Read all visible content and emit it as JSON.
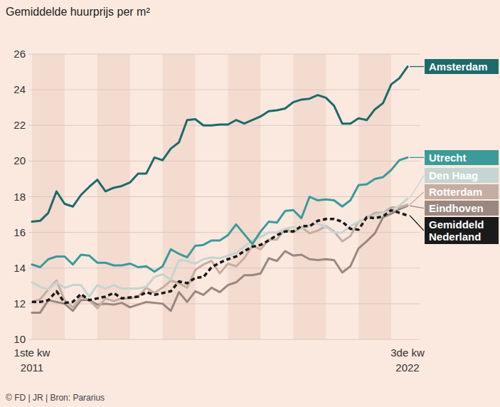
{
  "chart_data": {
    "type": "line",
    "title": "Gemiddelde huurprijs per m²",
    "source": "© FD | JR | Bron: Pararius",
    "categories": [
      "1ste kw 2011",
      null,
      null,
      null,
      null,
      null,
      null,
      null,
      null,
      null,
      null,
      null,
      null,
      null,
      null,
      null,
      null,
      null,
      null,
      null,
      null,
      null,
      null,
      null,
      null,
      null,
      null,
      null,
      null,
      null,
      null,
      null,
      null,
      null,
      null,
      null,
      null,
      null,
      null,
      null,
      null,
      null,
      null,
      null,
      null,
      null,
      "3de kw 2022"
    ],
    "ylim": [
      10,
      26
    ],
    "yticks": [
      10,
      12,
      14,
      16,
      18,
      20,
      22,
      24,
      26
    ],
    "grid": true,
    "legend": "right",
    "series": [
      {
        "name": "Amsterdam",
        "color": "#1c6a6b",
        "line_style": "solid",
        "values": [
          16.6,
          16.65,
          17.1,
          18.3,
          17.6,
          17.45,
          18.1,
          18.55,
          18.95,
          18.3,
          18.5,
          18.6,
          18.8,
          19.3,
          19.3,
          20.2,
          20.05,
          20.7,
          21.05,
          22.3,
          22.35,
          22.0,
          22.0,
          22.05,
          22.05,
          22.3,
          22.1,
          22.3,
          22.5,
          22.8,
          22.85,
          22.95,
          23.3,
          23.45,
          23.5,
          23.7,
          23.55,
          23.1,
          22.1,
          22.1,
          22.4,
          22.3,
          22.9,
          23.25,
          24.3,
          24.65,
          25.3
        ]
      },
      {
        "name": "Utrecht",
        "color": "#3a9b9a",
        "line_style": "solid",
        "values": [
          14.2,
          14.05,
          14.5,
          14.65,
          14.65,
          14.2,
          14.75,
          14.7,
          14.3,
          14.3,
          14.15,
          14.15,
          14.25,
          14.05,
          14.1,
          13.8,
          14.1,
          15.05,
          14.8,
          14.6,
          15.25,
          15.3,
          15.55,
          15.55,
          15.85,
          16.45,
          15.9,
          15.35,
          16.05,
          16.6,
          16.55,
          17.2,
          17.25,
          16.8,
          18.0,
          17.8,
          17.85,
          17.8,
          17.45,
          17.8,
          18.65,
          18.7,
          19.0,
          19.1,
          19.5,
          20.05,
          20.2
        ]
      },
      {
        "name": "Den Haag",
        "color": "#c5d5d1",
        "line_style": "solid",
        "values": [
          13.2,
          12.95,
          12.8,
          13.2,
          12.9,
          13.05,
          13.05,
          12.4,
          13.05,
          12.85,
          13.05,
          12.85,
          12.85,
          12.85,
          12.95,
          13.5,
          13.65,
          13.35,
          14.45,
          14.4,
          14.25,
          14.5,
          14.6,
          14.55,
          14.7,
          14.85,
          15.2,
          15.55,
          15.75,
          16.0,
          16.0,
          16.2,
          16.3,
          16.2,
          16.4,
          16.5,
          16.3,
          16.0,
          16.0,
          16.35,
          16.6,
          16.8,
          16.95,
          17.1,
          17.2,
          17.5,
          17.9
        ]
      },
      {
        "name": "Rotterdam",
        "color": "#c6ada2",
        "line_style": "solid",
        "values": [
          12.1,
          12.25,
          12.8,
          13.3,
          12.2,
          11.8,
          12.4,
          12.2,
          11.75,
          12.3,
          12.15,
          12.3,
          12.3,
          12.4,
          12.9,
          12.6,
          12.9,
          13.3,
          13.15,
          12.9,
          13.9,
          14.2,
          14.4,
          13.7,
          14.25,
          14.1,
          14.55,
          15.25,
          15.05,
          15.6,
          15.6,
          16.2,
          16.0,
          16.3,
          15.95,
          16.1,
          16.35,
          16.05,
          15.5,
          15.8,
          16.6,
          16.8,
          17.1,
          17.1,
          17.4,
          17.4,
          17.55
        ]
      },
      {
        "name": "Eindhoven",
        "color": "#9a8780",
        "line_style": "solid",
        "values": [
          11.5,
          11.5,
          12.2,
          12.1,
          12.0,
          11.6,
          12.2,
          12.2,
          11.95,
          12.0,
          11.95,
          12.05,
          11.8,
          11.95,
          12.1,
          12.05,
          12.0,
          11.6,
          12.65,
          12.1,
          12.7,
          12.5,
          12.9,
          12.65,
          13.05,
          13.2,
          13.6,
          13.6,
          13.7,
          14.55,
          14.4,
          14.95,
          14.7,
          14.75,
          14.5,
          14.45,
          14.5,
          14.45,
          13.75,
          14.1,
          15.1,
          15.5,
          15.95,
          16.85,
          17.05,
          17.3,
          17.5
        ]
      },
      {
        "name": "Gemiddeld Nederland",
        "color": "#1a1a1a",
        "line_style": "dashed",
        "values": [
          12.1,
          12.1,
          12.2,
          12.7,
          12.05,
          12.1,
          12.55,
          12.2,
          12.3,
          12.4,
          12.6,
          12.3,
          12.35,
          12.4,
          12.65,
          12.5,
          12.6,
          12.7,
          13.25,
          13.15,
          13.45,
          13.5,
          14.05,
          14.3,
          14.5,
          14.65,
          14.95,
          15.2,
          15.3,
          15.55,
          15.85,
          16.05,
          16.05,
          16.35,
          16.35,
          16.65,
          16.75,
          16.75,
          16.6,
          16.2,
          16.15,
          16.85,
          16.8,
          16.9,
          17.25,
          17.1,
          16.95
        ]
      }
    ]
  }
}
